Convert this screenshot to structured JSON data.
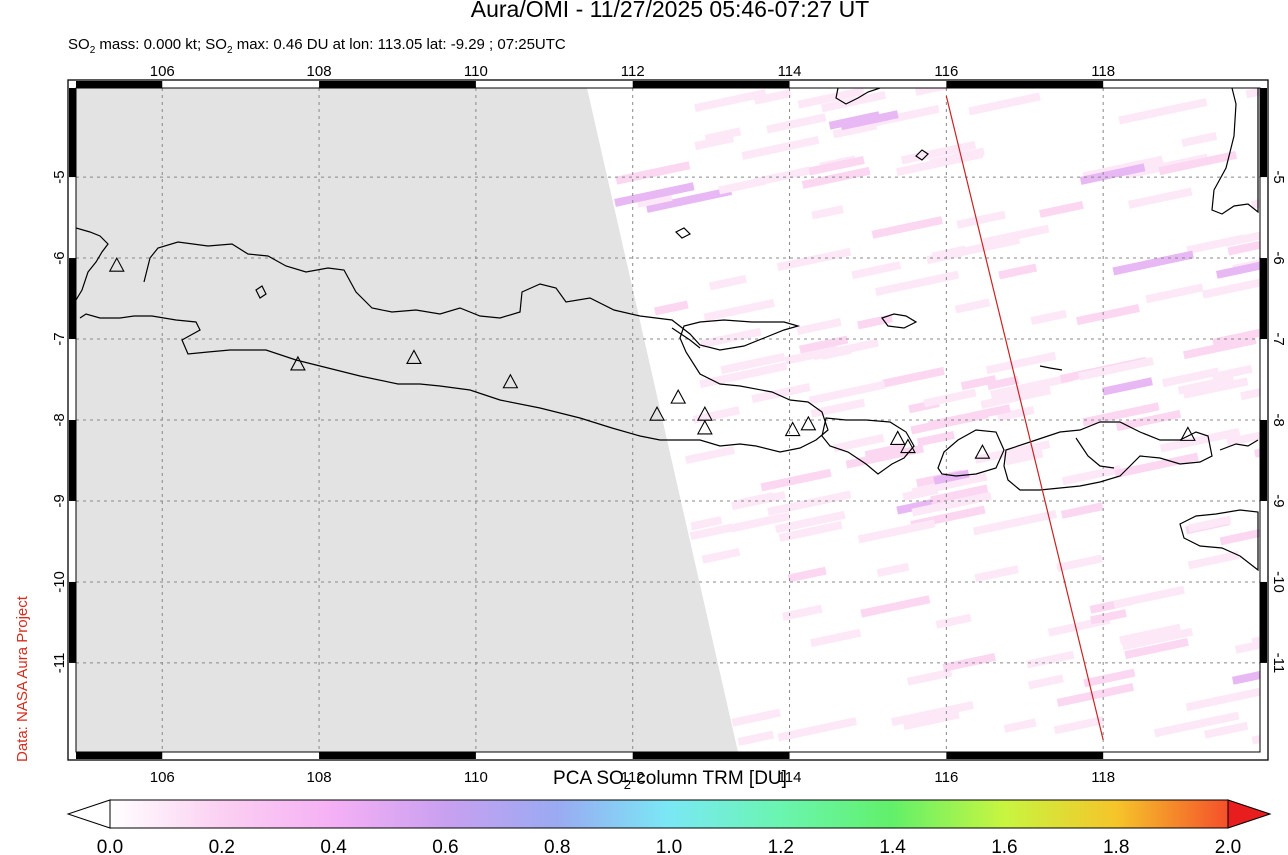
{
  "header": {
    "title": "Aura/OMI - 11/27/2025 05:46-07:27 UT",
    "so2_mass_label": "SO",
    "subtitle_rest": " mass: 0.000 kt; SO",
    "subtitle_tail": " max: 0.46 DU at lon: 113.05 lat: -9.29 ; 07:25UTC",
    "subscript": "2"
  },
  "credit": "Data: NASA Aura Project",
  "map": {
    "lon_range": [
      104.9,
      120.0
    ],
    "lat_range": [
      -12.1,
      -3.9
    ],
    "lon_ticks": [
      "106",
      "108",
      "110",
      "112",
      "114",
      "116",
      "118"
    ],
    "lat_ticks": [
      "-5",
      "-6",
      "-7",
      "-8",
      "-9",
      "-10",
      "-11"
    ],
    "grid": true,
    "no_data_region_color": "#e3e3e3",
    "coastline_color": "#000000",
    "orbit_track_color": "#cc2222",
    "volcano_marker": "triangle-outline",
    "volcanoes": [
      {
        "lon": 105.42,
        "lat": -6.1
      },
      {
        "lon": 107.73,
        "lat": -7.32
      },
      {
        "lon": 109.21,
        "lat": -7.24
      },
      {
        "lon": 110.44,
        "lat": -7.54
      },
      {
        "lon": 112.31,
        "lat": -7.94
      },
      {
        "lon": 112.58,
        "lat": -7.73
      },
      {
        "lon": 112.92,
        "lat": -7.94
      },
      {
        "lon": 112.92,
        "lat": -8.11
      },
      {
        "lon": 114.04,
        "lat": -8.13
      },
      {
        "lon": 114.24,
        "lat": -8.06
      },
      {
        "lon": 115.38,
        "lat": -8.24
      },
      {
        "lon": 115.51,
        "lat": -8.34
      },
      {
        "lon": 116.46,
        "lat": -8.41
      },
      {
        "lon": 119.08,
        "lat": -8.19
      }
    ],
    "orbit_track": {
      "start": {
        "lon": 116.0,
        "lat": -4.0
      },
      "end": {
        "lon": 118.0,
        "lat": -11.95
      }
    }
  },
  "colorbar": {
    "title_prefix": "PCA SO",
    "title_sub": "2",
    "title_suffix": " column TRM [DU]",
    "ticks": [
      "0.0",
      "0.2",
      "0.4",
      "0.6",
      "0.8",
      "1.0",
      "1.2",
      "1.4",
      "1.6",
      "1.8",
      "2.0"
    ],
    "colors": [
      "#ffffff",
      "#fbd0f2",
      "#f5b0f5",
      "#c9a0f0",
      "#9aaaf2",
      "#7ae8f5",
      "#6af5b0",
      "#62f06a",
      "#c8f540",
      "#f5c52a",
      "#f5502a",
      "#e81e1e"
    ]
  }
}
